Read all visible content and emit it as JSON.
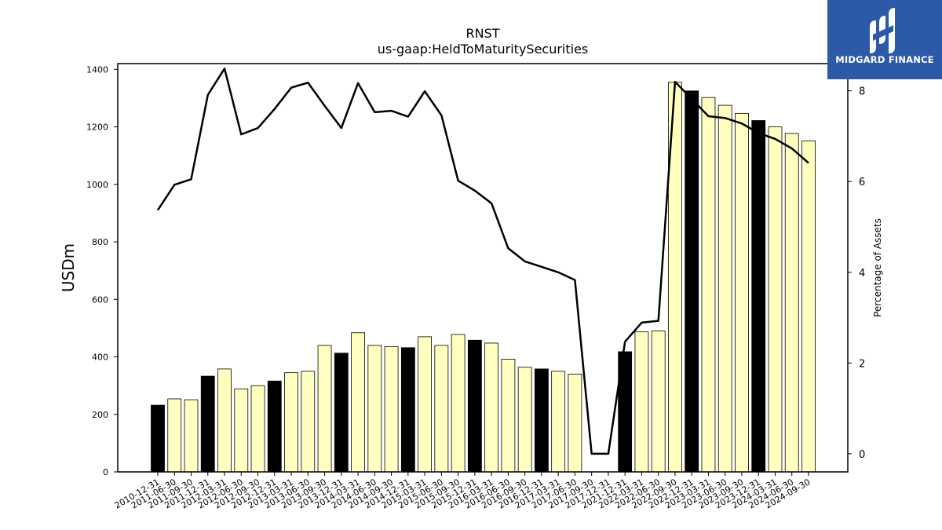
{
  "chart_data": {
    "type": "bar",
    "title": "RNST",
    "subtitle": "us-gaap:HeldToMaturitySecurities",
    "ylabel": "USDm",
    "y2label": "Percentage of Assets",
    "ylim": [
      0,
      1420
    ],
    "y2lim": [
      -0.4,
      8.6
    ],
    "yticks": [
      0,
      200,
      400,
      600,
      800,
      1000,
      1200,
      1400
    ],
    "y2ticks": [
      0,
      2,
      4,
      6,
      8
    ],
    "categories": [
      "2010-12-31",
      "2011-06-30",
      "2011-09-30",
      "2011-12-31",
      "2012-03-31",
      "2012-06-30",
      "2012-09-30",
      "2012-12-31",
      "2013-03-31",
      "2013-06-30",
      "2013-09-30",
      "2013-12-31",
      "2014-03-31",
      "2014-06-30",
      "2014-09-30",
      "2014-12-31",
      "2015-03-31",
      "2015-06-30",
      "2015-09-30",
      "2015-12-31",
      "2016-03-31",
      "2016-06-30",
      "2016-09-30",
      "2016-12-31",
      "2017-03-31",
      "2017-06-30",
      "2017-09-30",
      "2017-12-31",
      "2021-12-31",
      "2022-03-31",
      "2022-06-30",
      "2022-09-30",
      "2022-12-31",
      "2023-03-31",
      "2023-06-30",
      "2023-09-30",
      "2023-12-31",
      "2024-03-31",
      "2024-06-30",
      "2024-09-30"
    ],
    "series": [
      {
        "kind": "bar",
        "values": [
          232,
          254,
          251,
          333,
          358,
          289,
          300,
          316,
          345,
          350,
          440,
          413,
          484,
          440,
          436,
          432,
          470,
          440,
          478,
          458,
          448,
          392,
          364,
          358,
          350,
          340,
          0,
          0,
          418,
          487,
          490,
          1355,
          1325,
          1302,
          1275,
          1247,
          1222,
          1200,
          1177,
          1151
        ],
        "colors": [
          "#000000",
          "#ffffc0",
          "#ffffc0",
          "#000000",
          "#ffffc0",
          "#ffffc0",
          "#ffffc0",
          "#000000",
          "#ffffc0",
          "#ffffc0",
          "#ffffc0",
          "#000000",
          "#ffffc0",
          "#ffffc0",
          "#ffffc0",
          "#000000",
          "#ffffc0",
          "#ffffc0",
          "#ffffc0",
          "#000000",
          "#ffffc0",
          "#ffffc0",
          "#ffffc0",
          "#000000",
          "#ffffc0",
          "#ffffc0",
          "#ffffc0",
          "#000000",
          "#000000",
          "#ffffc0",
          "#ffffc0",
          "#ffffc0",
          "#000000",
          "#ffffc0",
          "#ffffc0",
          "#ffffc0",
          "#000000",
          "#ffffc0",
          "#ffffc0",
          "#ffffc0"
        ]
      },
      {
        "kind": "line",
        "axis": "right",
        "color": "#000000",
        "values": [
          5.37,
          5.93,
          6.05,
          7.91,
          8.49,
          7.04,
          7.18,
          7.6,
          8.07,
          8.18,
          7.67,
          7.18,
          8.17,
          7.53,
          7.56,
          7.43,
          7.99,
          7.46,
          6.02,
          5.8,
          5.52,
          4.53,
          4.24,
          4.12,
          4.0,
          3.83,
          0.0,
          0.0,
          2.47,
          2.89,
          2.93,
          8.2,
          7.82,
          7.44,
          7.4,
          7.28,
          7.07,
          6.94,
          6.73,
          6.41
        ]
      }
    ],
    "grid": false
  },
  "logo": {
    "text": "MIDGARD FINANCE",
    "color": "#2d5aa8"
  }
}
